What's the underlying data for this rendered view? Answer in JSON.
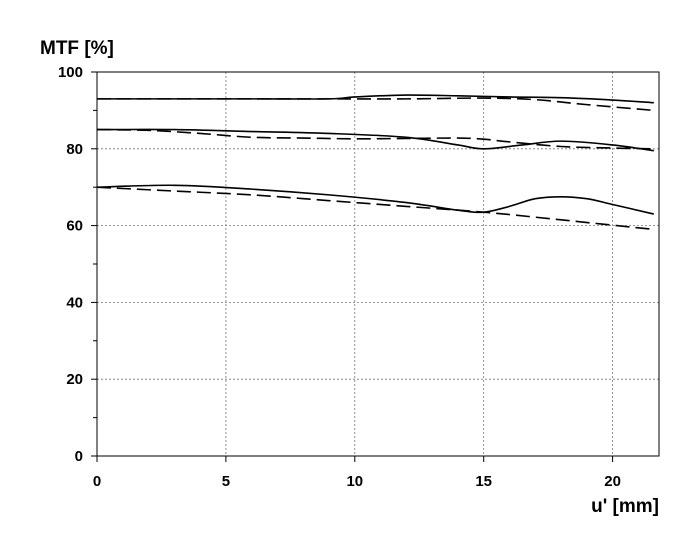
{
  "chart_data": {
    "type": "line",
    "title": "",
    "ylabel": "MTF [%]",
    "xlabel": "u' [mm]",
    "xlim": [
      0,
      21.8
    ],
    "ylim": [
      0,
      100
    ],
    "x_ticks": [
      0,
      5,
      10,
      15,
      20
    ],
    "y_ticks": [
      0,
      20,
      40,
      60,
      80,
      100
    ],
    "grid": true,
    "legend": "none",
    "series": [
      {
        "style": "solid",
        "x": [
          0,
          3,
          6,
          9,
          10,
          12,
          14,
          16,
          18,
          20,
          21.6
        ],
        "y": [
          93,
          93,
          93,
          93,
          93.5,
          94,
          93.8,
          93.5,
          93.3,
          92.7,
          92
        ]
      },
      {
        "style": "dashed",
        "x": [
          0,
          3,
          6,
          9,
          12,
          15,
          17,
          19,
          21.6
        ],
        "y": [
          93,
          93,
          93,
          93,
          93,
          93.2,
          92.8,
          91.5,
          90
        ]
      },
      {
        "style": "solid",
        "x": [
          0,
          3,
          6,
          9,
          12,
          14,
          15,
          16.5,
          18,
          20,
          21.6
        ],
        "y": [
          85,
          85,
          84.5,
          84,
          83,
          81,
          80,
          81,
          82,
          81,
          79.5
        ]
      },
      {
        "style": "dashed",
        "x": [
          0,
          2,
          4,
          6,
          8,
          10,
          12,
          14,
          15,
          16,
          18,
          20,
          21.6
        ],
        "y": [
          85,
          84.8,
          84,
          83,
          82.8,
          82.6,
          82.7,
          82.8,
          82.5,
          81.8,
          80.6,
          80.2,
          80
        ]
      },
      {
        "style": "solid",
        "x": [
          0,
          3,
          6,
          9,
          12,
          14,
          15,
          16,
          17,
          18,
          19,
          20,
          21.6
        ],
        "y": [
          70,
          70.5,
          69.5,
          68,
          66,
          64,
          63.5,
          65,
          67,
          67.5,
          67,
          65.5,
          63
        ]
      },
      {
        "style": "dashed",
        "x": [
          0,
          3,
          6,
          9,
          12,
          15,
          18,
          21.6
        ],
        "y": [
          70,
          69,
          68,
          66.5,
          65,
          63.5,
          61.5,
          59
        ]
      }
    ]
  }
}
